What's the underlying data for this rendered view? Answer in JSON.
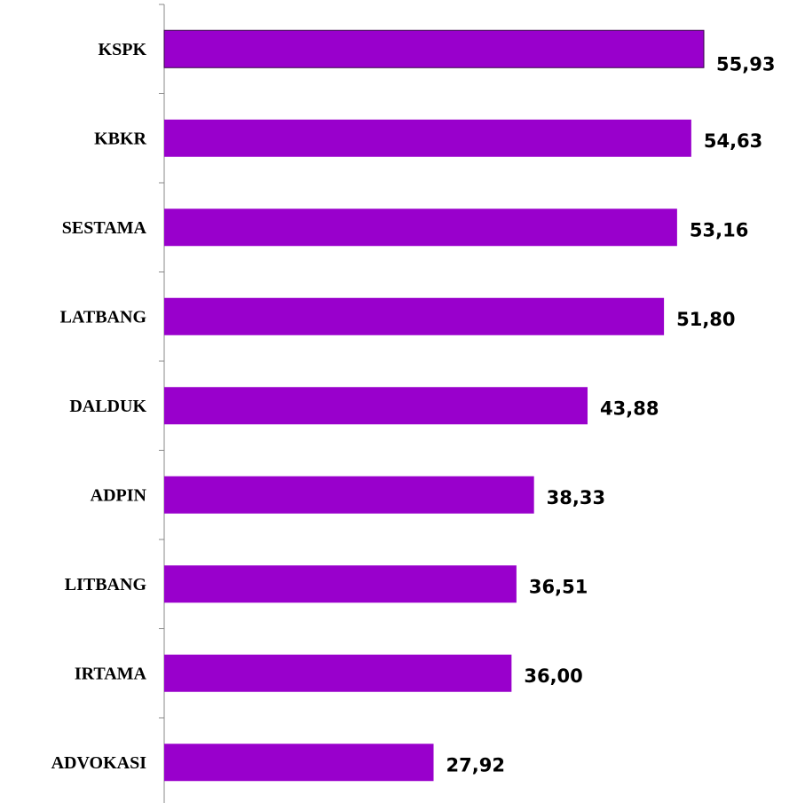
{
  "chart_data": {
    "type": "bar",
    "orientation": "horizontal",
    "categories": [
      "KSPK",
      "KBKR",
      "SESTAMA",
      "LATBANG",
      "DALDUK",
      "ADPIN",
      "LITBANG",
      "IRTAMA",
      "ADVOKASI"
    ],
    "values": [
      55.93,
      54.63,
      53.16,
      51.8,
      43.88,
      38.33,
      36.51,
      36.0,
      27.92
    ],
    "value_labels": [
      "55,93",
      "54,63",
      "53,16",
      "51,80",
      "43,88",
      "38,33",
      "36,51",
      "36,00",
      "27,92"
    ],
    "color": "#9900cc"
  }
}
